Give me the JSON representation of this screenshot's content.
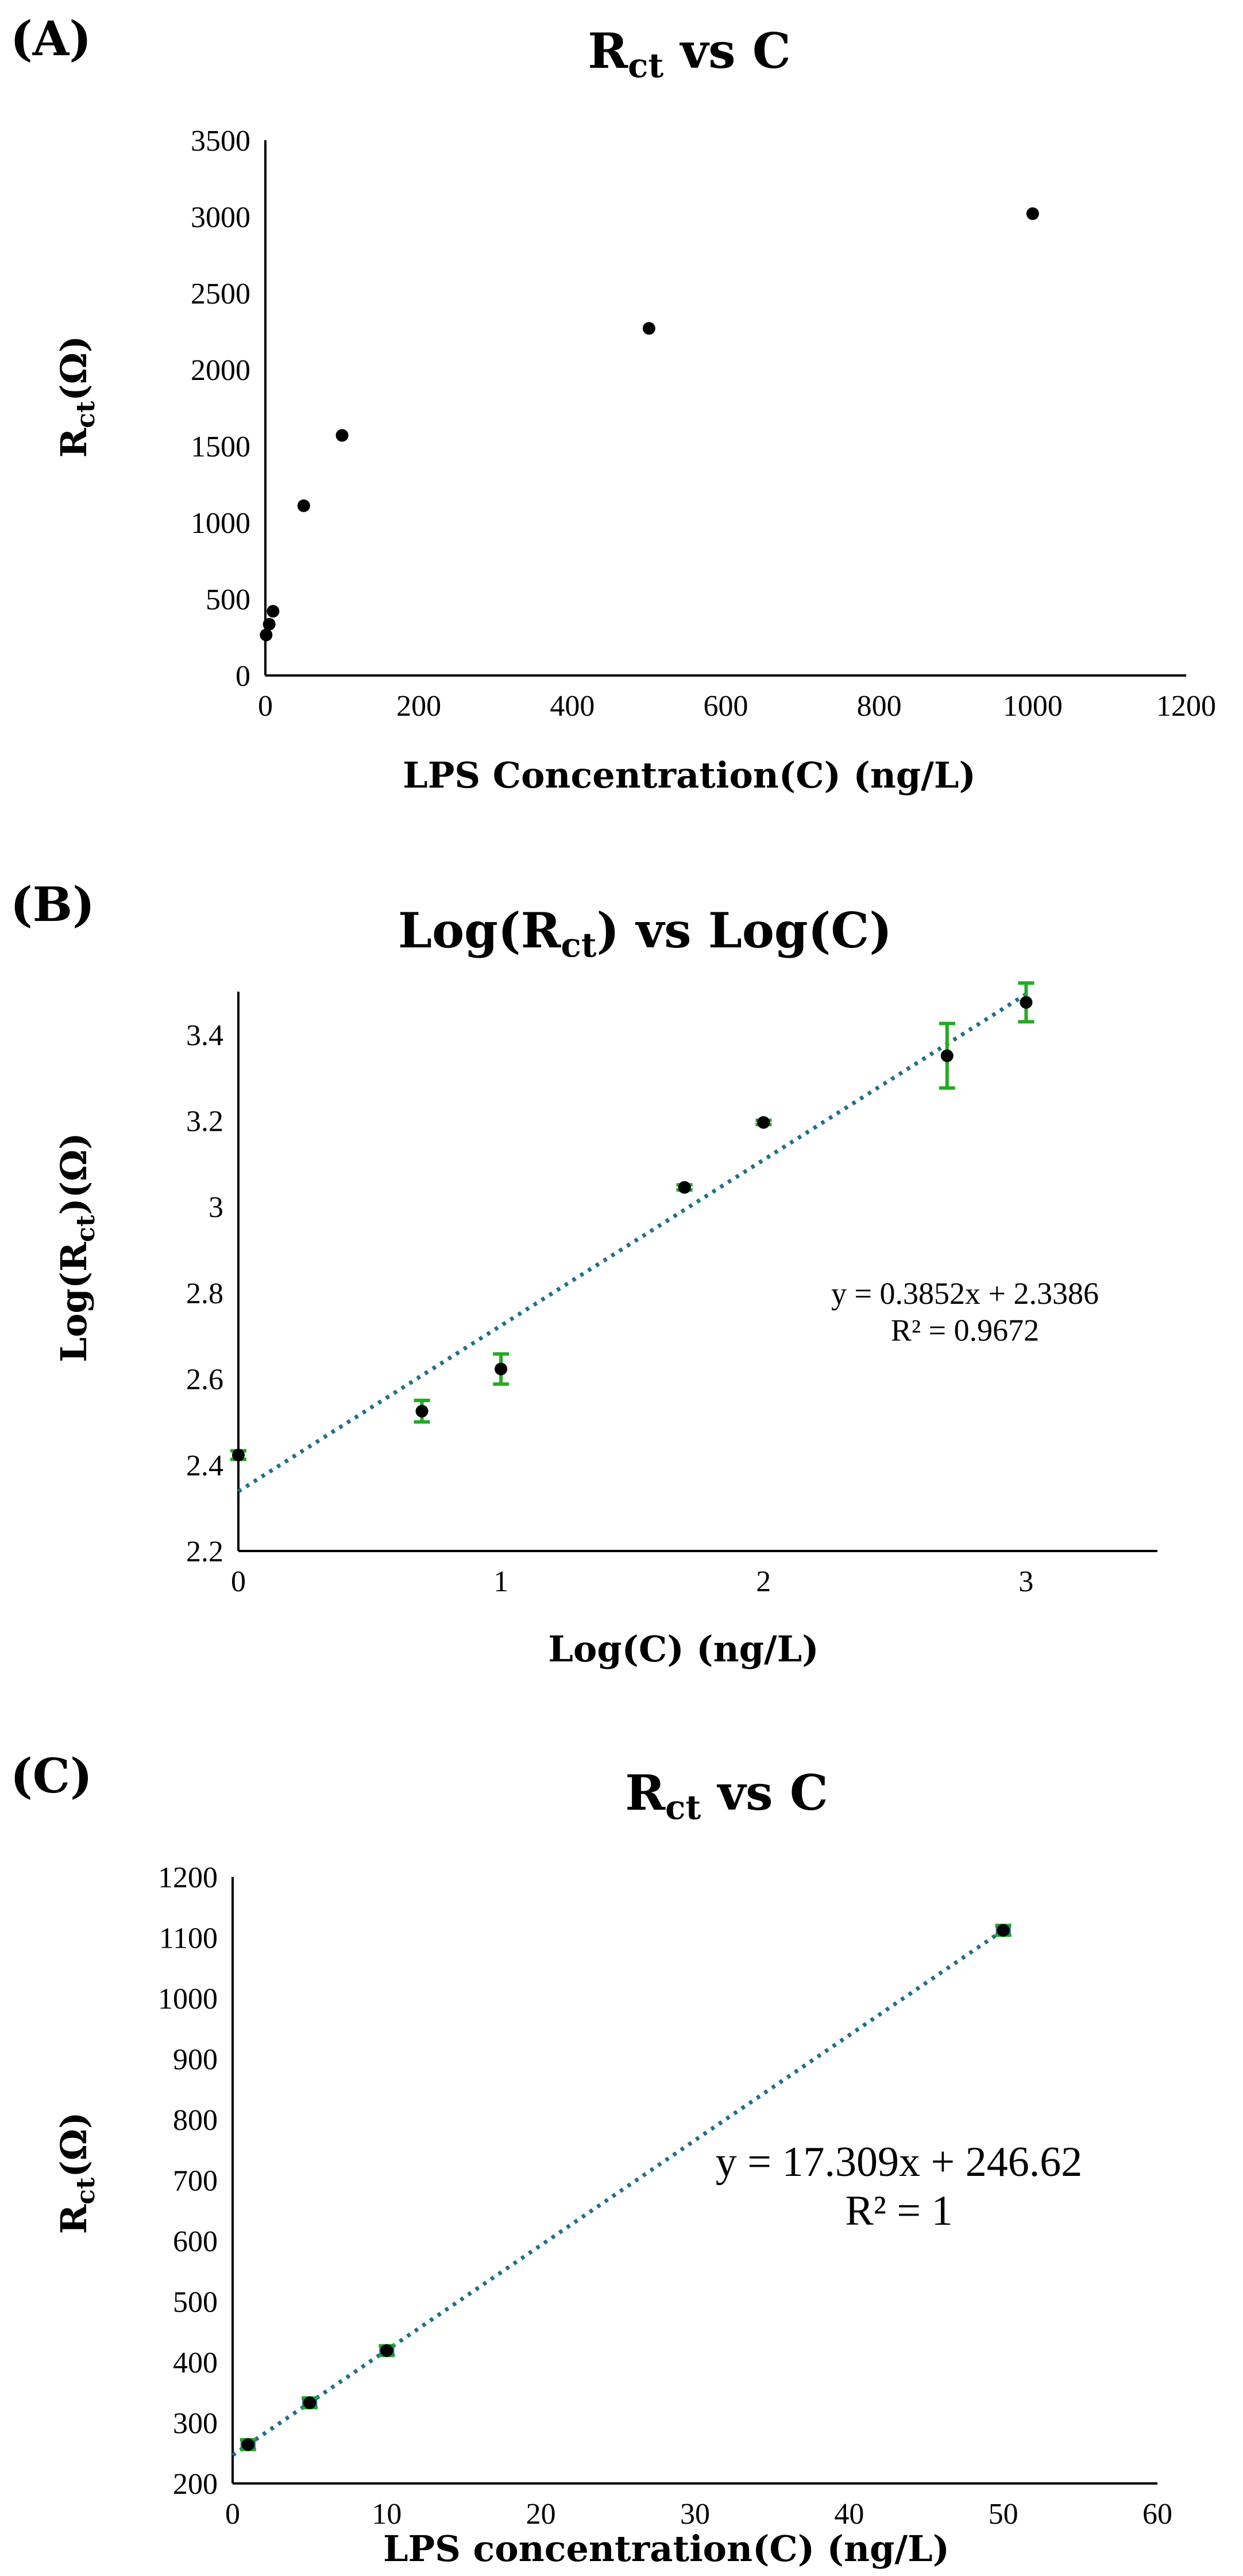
{
  "chart_data": [
    {
      "panel": "(A)",
      "type": "scatter",
      "title": {
        "main": "R",
        "sub": "ct",
        "rest": " vs C"
      },
      "xlabel": "LPS Concentration(C) (ng/L)",
      "ylabel": {
        "main": "R",
        "sub": "ct",
        "rest": "(Ω)"
      },
      "xlim": [
        0,
        1200
      ],
      "ylim": [
        0,
        3500
      ],
      "xticks": [
        0,
        200,
        400,
        600,
        800,
        1000,
        1200
      ],
      "yticks": [
        0,
        500,
        1000,
        1500,
        2000,
        2500,
        3000,
        3500
      ],
      "series": [
        {
          "name": "Rct",
          "x": [
            1,
            5,
            10,
            50,
            100,
            500,
            1000
          ],
          "y": [
            265,
            335,
            420,
            1110,
            1570,
            2270,
            3020
          ]
        }
      ]
    },
    {
      "panel": "(B)",
      "type": "scatter",
      "title": {
        "pre": "Log(R",
        "sub": "ct",
        "rest": ") vs Log(C)"
      },
      "xlabel": "Log(C) (ng/L)",
      "ylabel": {
        "pre": "Log(R",
        "sub": "ct",
        "rest": ")(Ω)"
      },
      "xlim": [
        0,
        3.5
      ],
      "ylim": [
        2.2,
        3.5
      ],
      "xticks": [
        0,
        1,
        2,
        3
      ],
      "yticks": [
        2.2,
        2.4,
        2.6,
        2.8,
        3.0,
        3.2,
        3.4
      ],
      "ytick_labels": [
        "2.2",
        "2.4",
        "2.6",
        "2.8",
        "3",
        "3.2",
        "3.4"
      ],
      "series": [
        {
          "name": "Log(Rct)",
          "x": [
            0,
            0.699,
            1,
            1.699,
            2,
            2.699,
            3
          ],
          "y": [
            2.423,
            2.525,
            2.623,
            3.045,
            3.196,
            3.351,
            3.475
          ],
          "err": [
            0.01,
            0.025,
            0.035,
            0.006,
            0.005,
            0.075,
            0.045
          ]
        }
      ],
      "trendline": {
        "slope": 0.3852,
        "intercept": 2.3386
      },
      "equation": "y = 0.3852x + 2.3386",
      "r_squared": "R² = 0.9672"
    },
    {
      "panel": "(C)",
      "type": "scatter",
      "title": {
        "main": "R",
        "sub": "ct",
        "rest": " vs C"
      },
      "xlabel": "LPS concentration(C) (ng/L)",
      "ylabel": {
        "main": "R",
        "sub": "ct",
        "rest": "(Ω)"
      },
      "xlim": [
        0,
        60
      ],
      "ylim": [
        200,
        1200
      ],
      "xticks": [
        0,
        10,
        20,
        30,
        40,
        50,
        60
      ],
      "yticks": [
        200,
        300,
        400,
        500,
        600,
        700,
        800,
        900,
        1000,
        1100,
        1200
      ],
      "series": [
        {
          "name": "Rct",
          "x": [
            1,
            5,
            10,
            50
          ],
          "y": [
            264,
            333,
            419,
            1112
          ],
          "err": [
            8,
            8,
            8,
            8
          ]
        }
      ],
      "trendline": {
        "slope": 17.309,
        "intercept": 246.62
      },
      "equation": "y = 17.309x  + 246.62",
      "r_squared": "R² = 1"
    }
  ]
}
